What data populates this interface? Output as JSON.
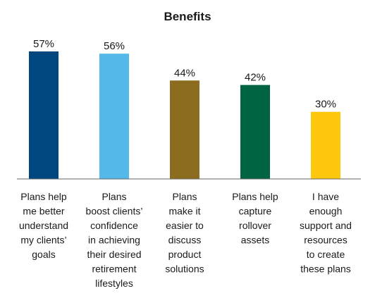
{
  "chart_data": {
    "type": "bar",
    "title": "Benefits",
    "categories": [
      "Plans help me better understand my clients’ goals",
      "Plans boost clients’ confidence in achieving their desired retirement lifestyles",
      "Plans make it easier to discuss product solutions",
      "Plans help capture rollover assets",
      "I have enough support and resources to create these plans"
    ],
    "category_lines": [
      [
        "Plans help",
        "me better",
        "understand",
        "my clients’",
        "goals"
      ],
      [
        "Plans",
        "boost clients’",
        "confidence",
        "in achieving",
        "their desired",
        "retirement",
        "lifestyles"
      ],
      [
        "Plans",
        "make it",
        "easier to",
        "discuss",
        "product",
        "solutions"
      ],
      [
        "Plans help",
        "capture",
        "rollover",
        "assets"
      ],
      [
        "I have",
        "enough",
        "support and",
        "resources",
        "to create",
        "these plans"
      ]
    ],
    "values": [
      57,
      56,
      44,
      42,
      30
    ],
    "value_labels": [
      "57%",
      "56%",
      "44%",
      "42%",
      "30%"
    ],
    "colors": [
      "#00467f",
      "#54b9e9",
      "#8c6d1f",
      "#006341",
      "#fcc70d"
    ],
    "ylim": [
      0,
      60
    ],
    "grid": false,
    "legend": "none",
    "xlabel": "",
    "ylabel": ""
  }
}
